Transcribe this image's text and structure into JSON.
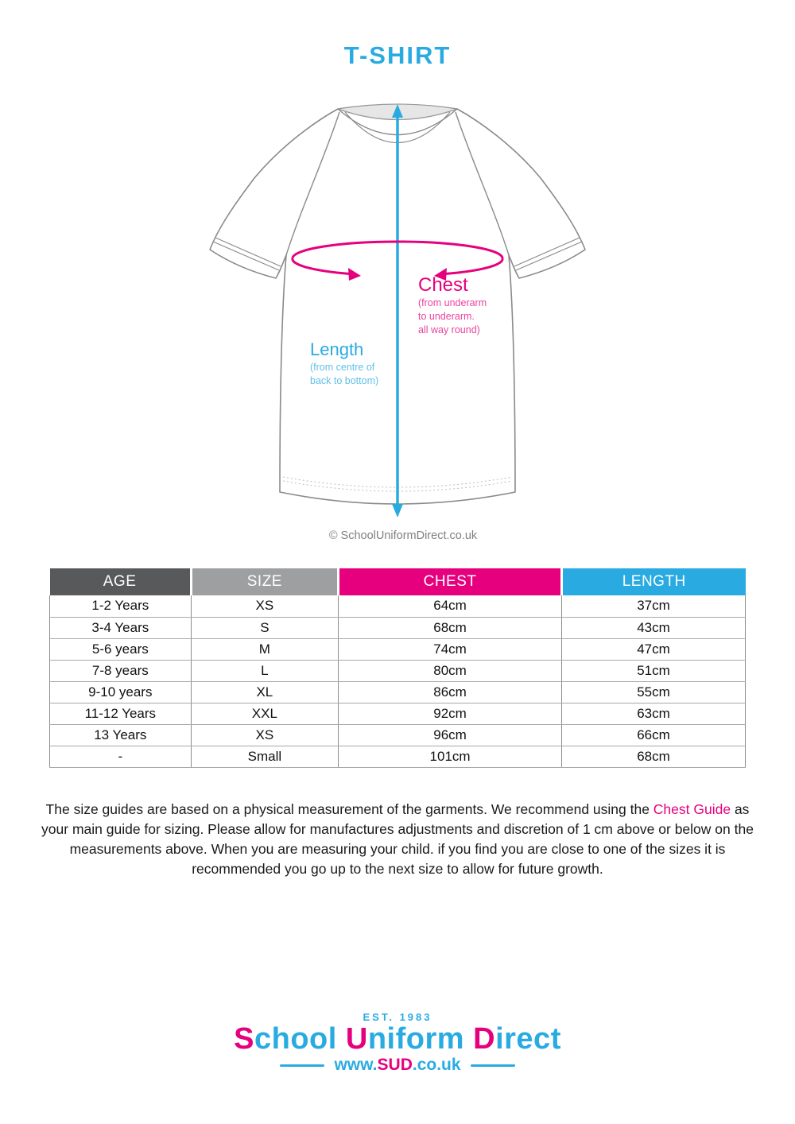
{
  "page": {
    "title": "T-SHIRT"
  },
  "diagram": {
    "chest": {
      "label": "Chest",
      "sub1": "(from underarm",
      "sub2": "to underarm.",
      "sub3": "all way round)"
    },
    "length": {
      "label": "Length",
      "sub1": "(from centre of",
      "sub2": "back to bottom)"
    },
    "copyright": "© SchoolUniformDirect.co.uk"
  },
  "table": {
    "headers": [
      "AGE",
      "SIZE",
      "CHEST",
      "LENGTH"
    ],
    "rows": [
      [
        "1-2 Years",
        "XS",
        "64cm",
        "37cm"
      ],
      [
        "3-4 Years",
        "S",
        "68cm",
        "43cm"
      ],
      [
        "5-6 years",
        "M",
        "74cm",
        "47cm"
      ],
      [
        "7-8 years",
        "L",
        "80cm",
        "51cm"
      ],
      [
        "9-10 years",
        "XL",
        "86cm",
        "55cm"
      ],
      [
        "11-12 Years",
        "XXL",
        "92cm",
        "63cm"
      ],
      [
        "13 Years",
        "XS",
        "96cm",
        "66cm"
      ],
      [
        "-",
        "Small",
        "101cm",
        "68cm"
      ]
    ]
  },
  "note": {
    "part1": "The size guides are based on a physical measurement of the garments. We recommend using the ",
    "highlight": "Chest Guide",
    "part2": " as your main guide for sizing. Please allow for manufactures adjustments and discretion of 1 cm above or below on the measurements above. When you are measuring your child. if you find you are close to one of the sizes it is recommended you go up to the next size to allow for future growth."
  },
  "footer": {
    "est": "EST. 1983",
    "brand_parts": [
      "S",
      "chool ",
      "U",
      "niform ",
      "D",
      "irect"
    ],
    "url_parts": [
      "www.",
      "SUD",
      ".co.uk"
    ]
  },
  "colors": {
    "blue": "#29ABE2",
    "pink": "#E6007E",
    "header_dark_gray": "#58595B",
    "header_gray": "#9D9FA0",
    "outline_gray": "#8A8A8A"
  }
}
